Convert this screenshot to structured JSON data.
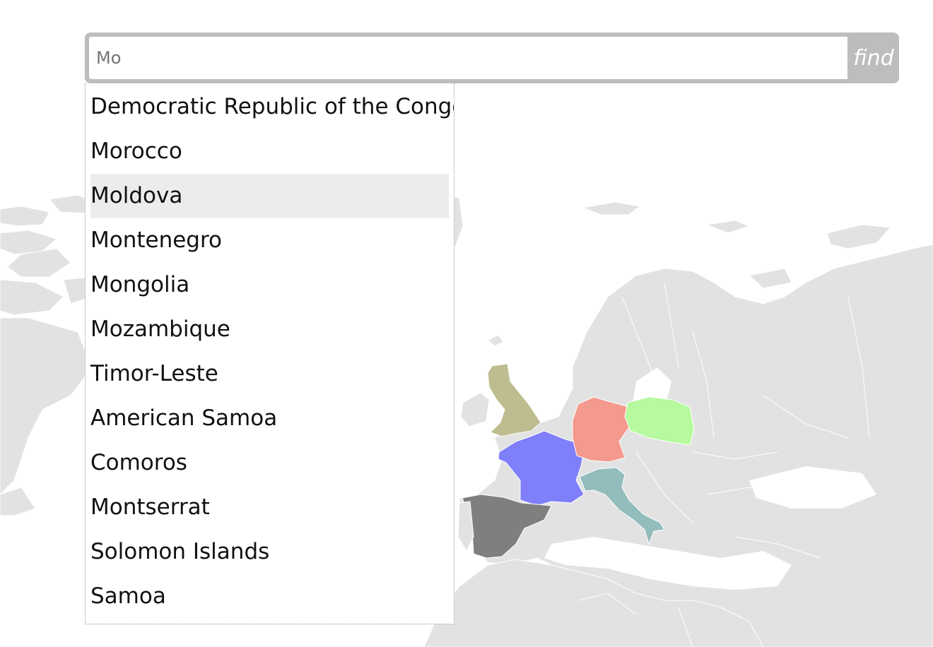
{
  "search": {
    "placeholder": "Mo",
    "value": "",
    "find_label": "find"
  },
  "suggestions": {
    "active_index": 2,
    "items": [
      "Democratic Republic of the Congo",
      "Morocco",
      "Moldova",
      "Montenegro",
      "Mongolia",
      "Mozambique",
      "Timor-Leste",
      "American Samoa",
      "Comoros",
      "Montserrat",
      "Solomon Islands",
      "Samoa"
    ]
  },
  "map": {
    "land_color": "#e2e2e2",
    "highlighted_countries": [
      {
        "name": "United Kingdom",
        "color": "#bdbd8f"
      },
      {
        "name": "France",
        "color": "#7f7ff9"
      },
      {
        "name": "Germany",
        "color": "#f4998d"
      },
      {
        "name": "Poland",
        "color": "#b6f99e"
      },
      {
        "name": "Italy",
        "color": "#93bcbc"
      },
      {
        "name": "Spain",
        "color": "#7f7f7f"
      }
    ]
  }
}
